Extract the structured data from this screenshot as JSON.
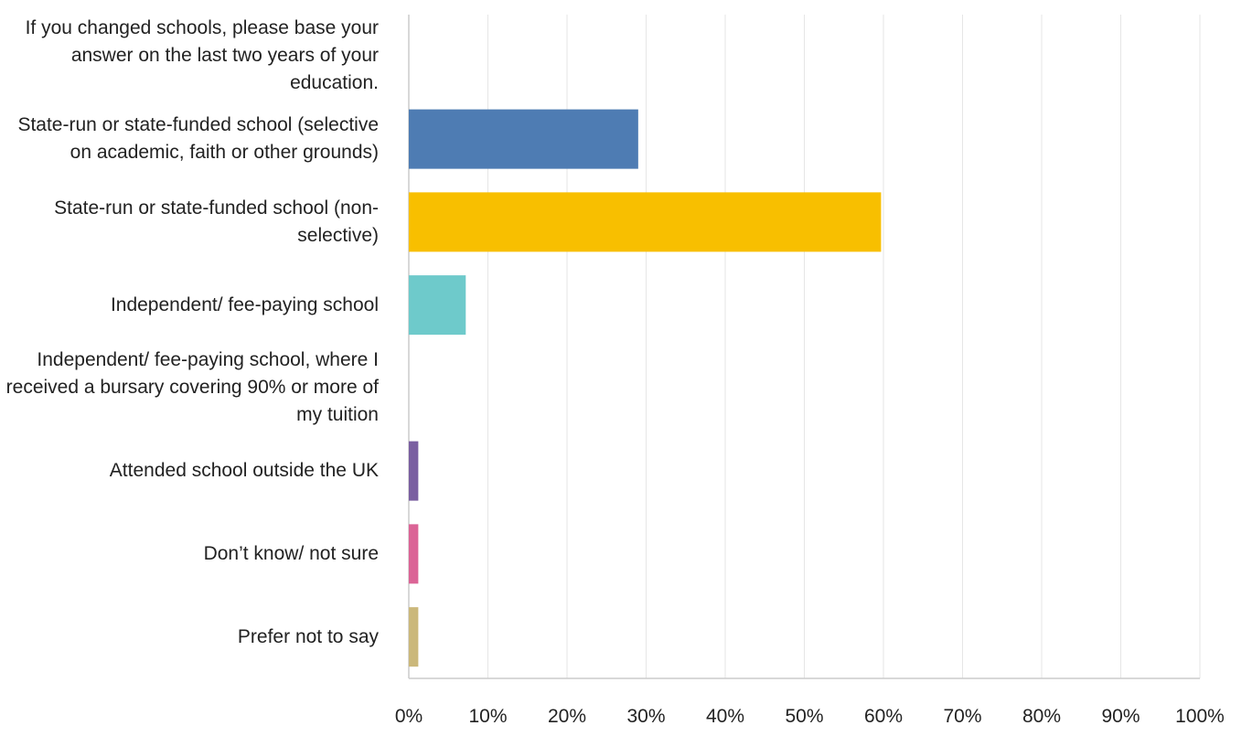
{
  "chart_data": {
    "type": "bar",
    "orientation": "horizontal",
    "categories": [
      "If you changed schools, please base your answer on the last two years of your education.",
      "State-run or state-funded school (selective on academic, faith or other grounds)",
      "State-run or state-funded school (non-selective)",
      "Independent/ fee-paying school",
      "Independent/ fee-paying school, where I received a bursary covering 90% or more of my tuition",
      "Attended school outside the UK",
      "Don’t know/ not sure",
      "Prefer not to say"
    ],
    "values": [
      0,
      29,
      59.7,
      7.2,
      0,
      1.2,
      1.2,
      1.2
    ],
    "colors": [
      "#4e7cb3",
      "#4e7cb3",
      "#f8bf00",
      "#6ecacb",
      "#7a5fa1",
      "#7a5fa1",
      "#db6496",
      "#cbb87b"
    ],
    "xlim": [
      0,
      100
    ],
    "x_ticks": [
      "0%",
      "10%",
      "20%",
      "30%",
      "40%",
      "50%",
      "60%",
      "70%",
      "80%",
      "90%",
      "100%"
    ],
    "grid": true,
    "grid_color": "#e6e6e6",
    "axis_color": "#cccccc"
  }
}
